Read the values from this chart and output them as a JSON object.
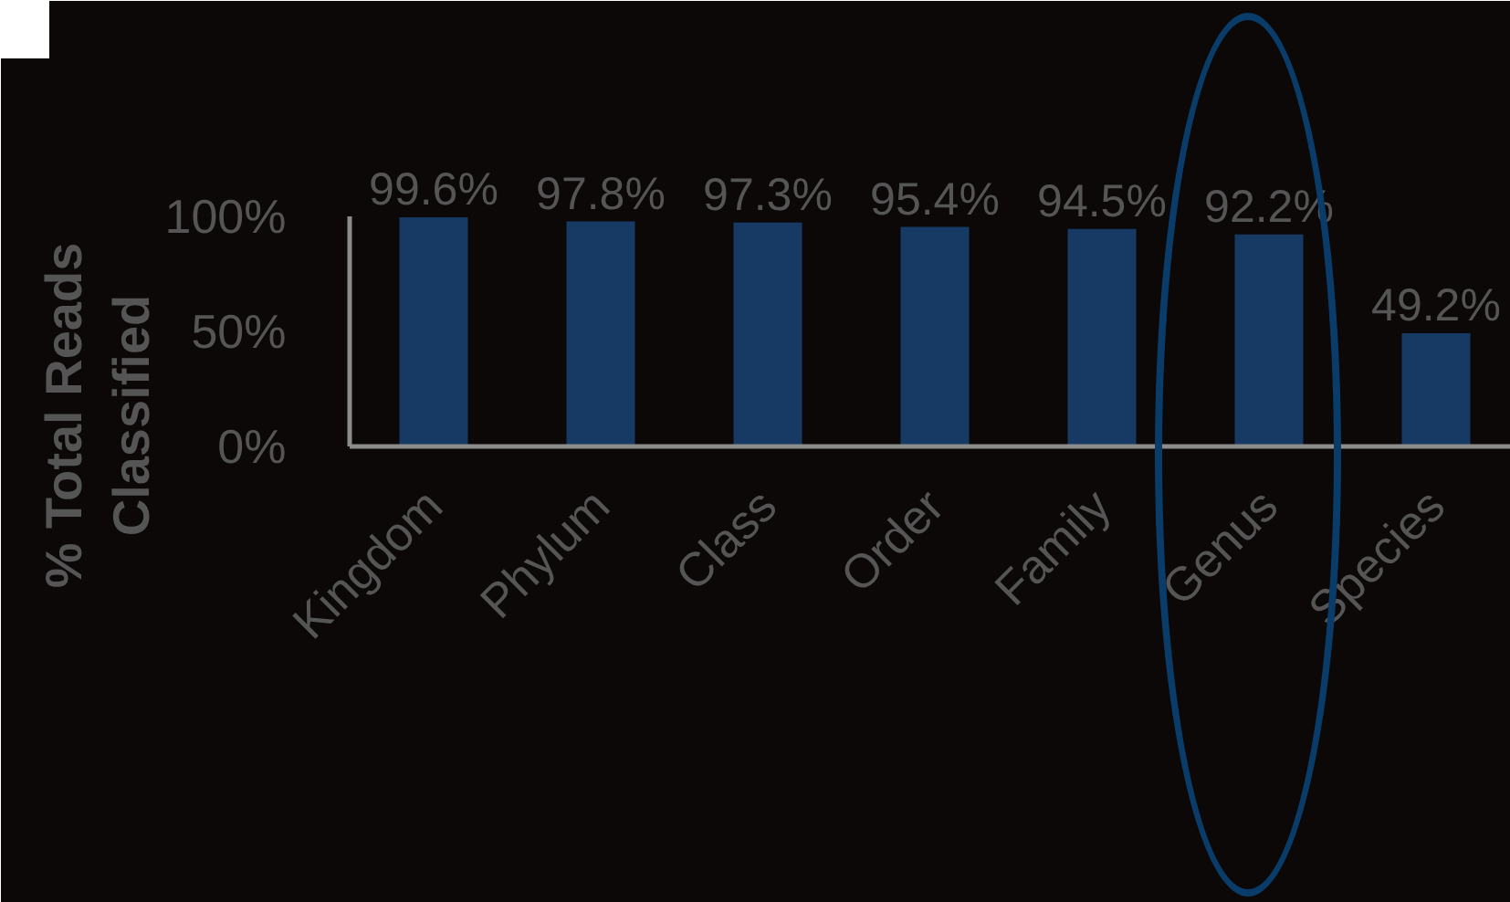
{
  "chart_data": {
    "type": "bar",
    "ylabel": "% Total Reads Classified",
    "categories": [
      "Kingdom",
      "Phylum",
      "Class",
      "Order",
      "Family",
      "Genus",
      "Species"
    ],
    "values": [
      99.6,
      97.8,
      97.3,
      95.4,
      94.5,
      92.2,
      49.2
    ],
    "value_labels": [
      "99.6%",
      "97.8%",
      "97.3%",
      "95.4%",
      "94.5%",
      "92.2%",
      "49.2%"
    ],
    "color": "#163a63",
    "ylim": [
      0,
      100
    ],
    "yticks": [
      {
        "value": 0,
        "label": "0%"
      },
      {
        "value": 50,
        "label": "50%"
      },
      {
        "value": 100,
        "label": "100%"
      }
    ]
  }
}
